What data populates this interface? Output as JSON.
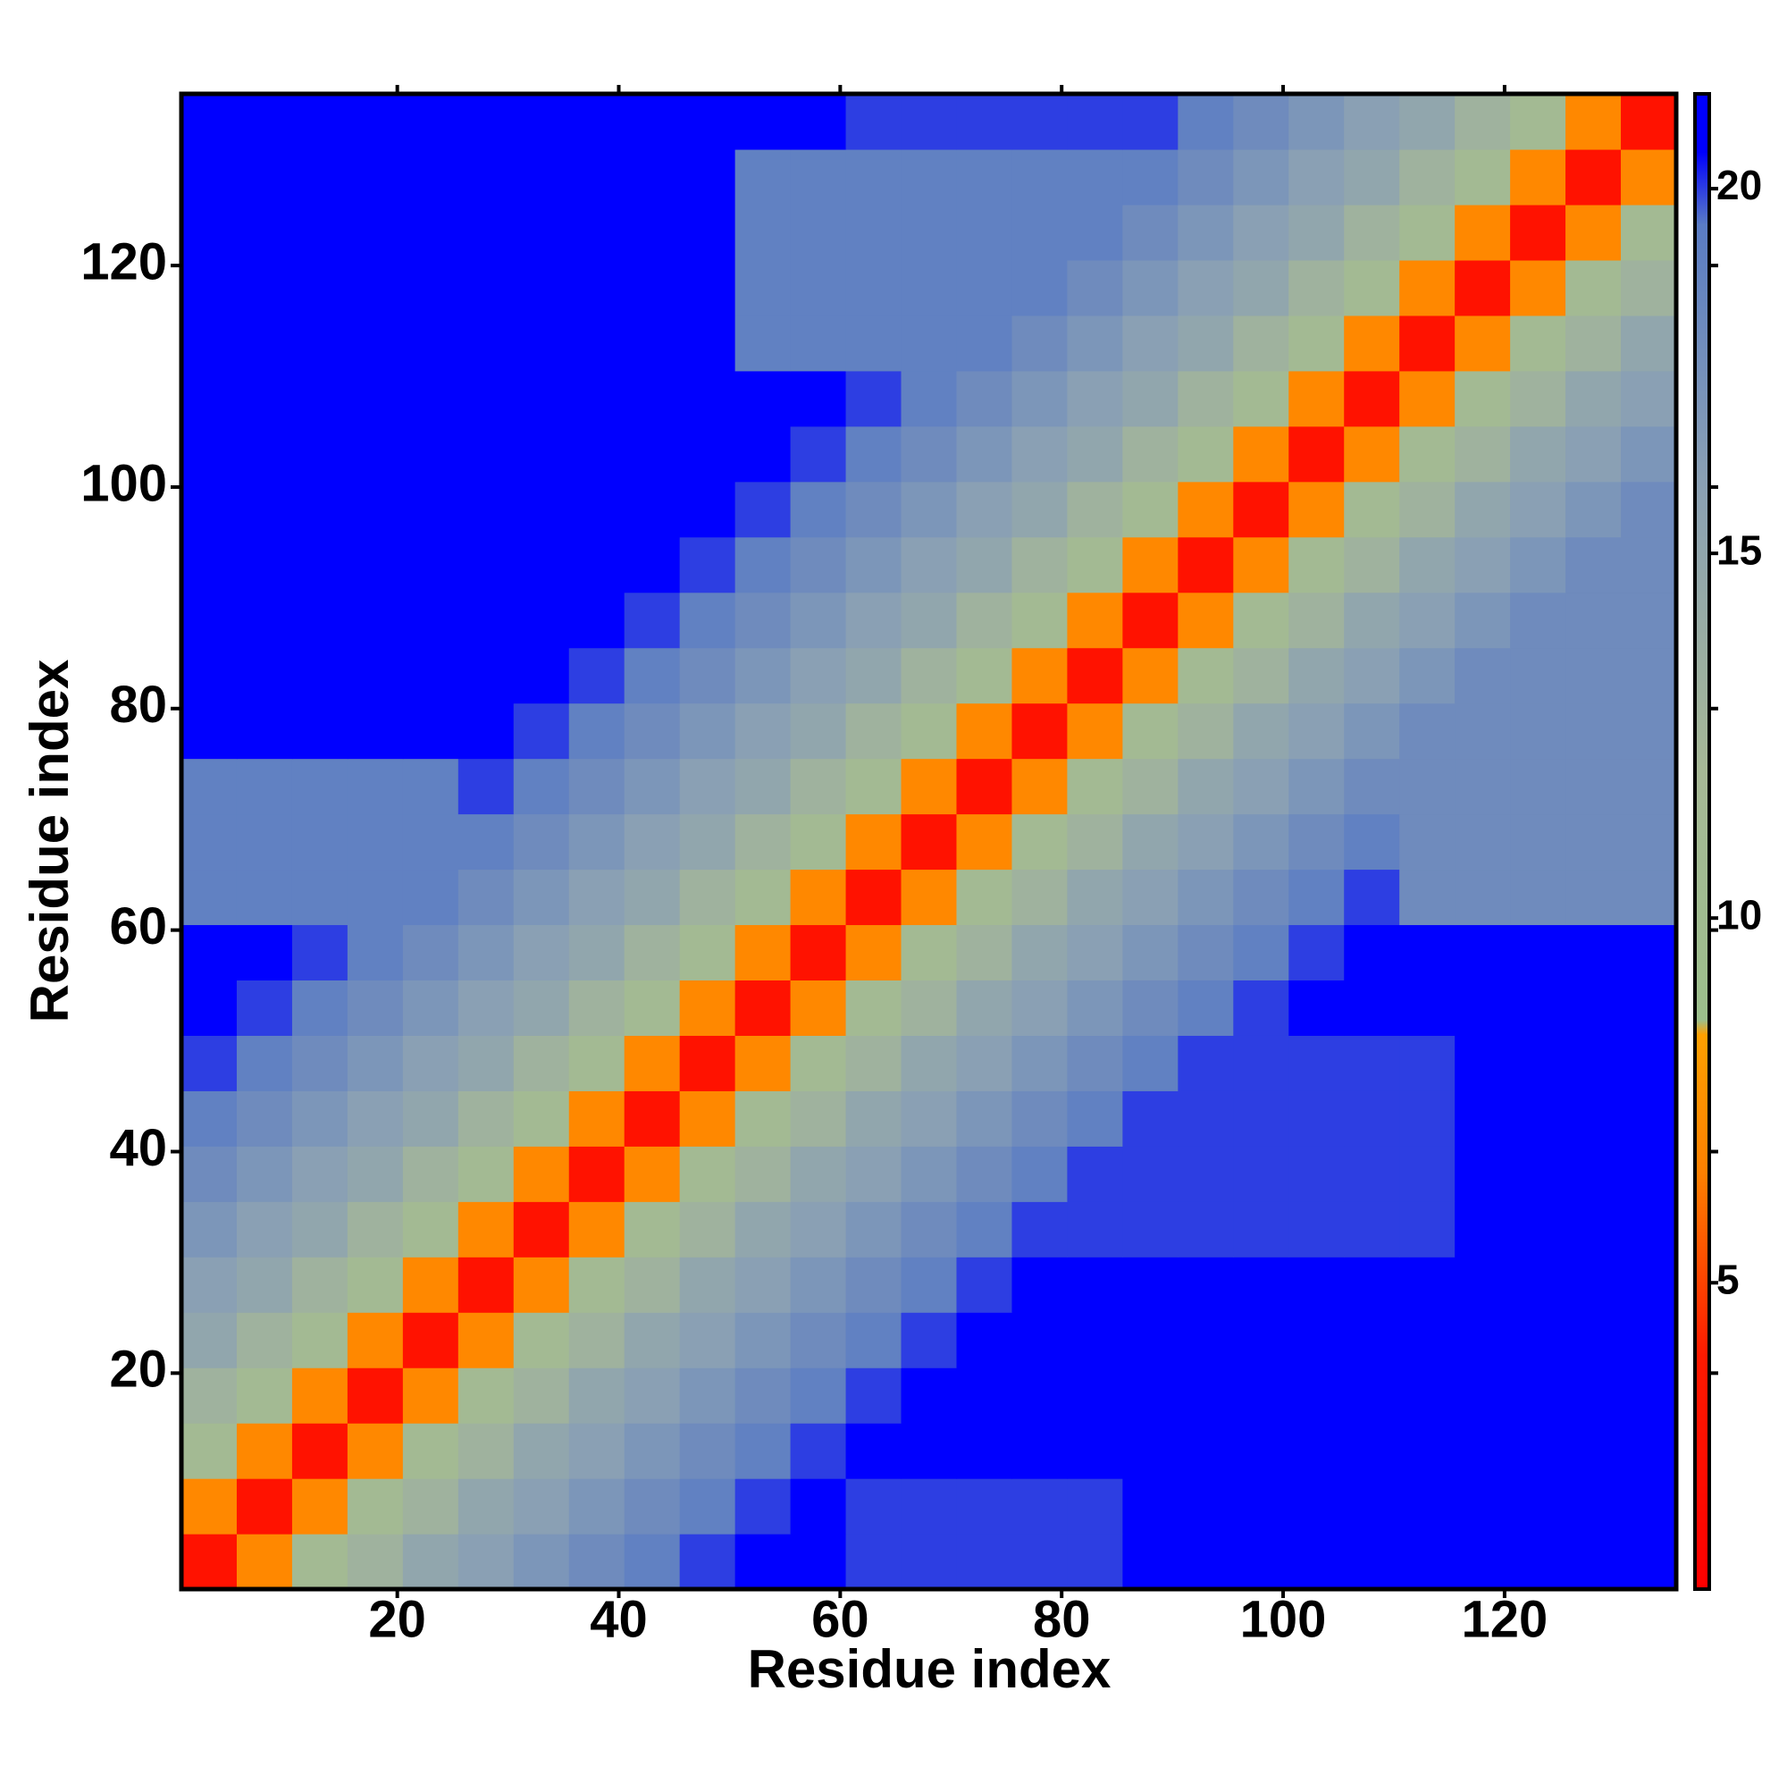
{
  "chart_data": {
    "type": "heatmap",
    "x_label": "Residue index",
    "y_label": "Residue index",
    "xlim": [
      0.5,
      135.5
    ],
    "ylim": [
      0.5,
      135.5
    ],
    "xticks": [
      20,
      40,
      60,
      80,
      100,
      120
    ],
    "yticks": [
      20,
      40,
      60,
      80,
      100,
      120
    ],
    "x_bins": [
      0.5,
      5.5,
      10.5,
      15.5,
      20.5,
      25.5,
      30.5,
      35.5,
      40.5,
      45.5,
      50.5,
      55.5,
      60.5,
      65.5,
      70.5,
      75.5,
      80.5,
      85.5,
      90.5,
      95.5,
      100.5,
      105.5,
      110.5,
      115.5,
      120.5,
      125.5,
      130.5,
      135.5
    ],
    "y_bins": [
      0.5,
      5.5,
      10.5,
      15.5,
      20.5,
      25.5,
      30.5,
      35.5,
      40.5,
      45.5,
      50.5,
      55.5,
      60.5,
      65.5,
      70.5,
      75.5,
      80.5,
      85.5,
      90.5,
      95.5,
      100.5,
      105.5,
      110.5,
      115.5,
      120.5,
      125.5,
      130.5,
      135.5
    ],
    "zlim": [
      0.8,
      21.3
    ],
    "zticks": [
      5,
      10,
      15,
      20
    ],
    "colorscale": [
      [
        0.8,
        "#ff0000"
      ],
      [
        4,
        "#ff1a00"
      ],
      [
        6.5,
        "#ff8000"
      ],
      [
        8.4,
        "#ffa000"
      ],
      [
        8.6,
        "#9cbf8c"
      ],
      [
        12,
        "#a6b896"
      ],
      [
        16,
        "#8aa0b4"
      ],
      [
        19.5,
        "#5a7cc4"
      ],
      [
        20.5,
        "#0000ff"
      ],
      [
        21.3,
        "#0000ff"
      ]
    ],
    "z": [
      [
        3,
        7,
        11,
        13,
        15,
        16,
        17,
        18,
        19,
        20,
        21,
        21,
        20,
        20,
        20,
        20,
        20,
        21,
        21,
        21,
        21,
        21,
        21,
        21,
        21,
        21,
        21
      ],
      [
        7,
        3,
        7,
        11,
        13,
        15,
        16,
        17,
        18,
        19,
        20,
        21,
        20,
        20,
        20,
        20,
        20,
        21,
        21,
        21,
        21,
        21,
        21,
        21,
        21,
        21,
        21
      ],
      [
        11,
        7,
        3,
        7,
        11,
        13,
        15,
        16,
        17,
        18,
        19,
        20,
        21,
        21,
        21,
        21,
        21,
        21,
        21,
        21,
        21,
        21,
        21,
        21,
        21,
        21,
        21
      ],
      [
        13,
        11,
        7,
        3,
        7,
        11,
        13,
        15,
        16,
        17,
        18,
        19,
        20,
        21,
        21,
        21,
        21,
        21,
        21,
        21,
        21,
        21,
        21,
        21,
        21,
        21,
        21
      ],
      [
        15,
        13,
        11,
        7,
        3,
        7,
        11,
        13,
        15,
        16,
        17,
        18,
        19,
        20,
        21,
        21,
        21,
        21,
        21,
        21,
        21,
        21,
        21,
        21,
        21,
        21,
        21
      ],
      [
        16,
        15,
        13,
        11,
        7,
        3,
        7,
        11,
        13,
        15,
        16,
        17,
        18,
        19,
        20,
        21,
        21,
        21,
        21,
        21,
        21,
        21,
        21,
        21,
        21,
        21,
        21
      ],
      [
        17,
        16,
        15,
        13,
        11,
        7,
        3,
        7,
        11,
        13,
        15,
        16,
        17,
        18,
        19,
        20,
        20,
        20,
        20,
        20,
        20,
        20,
        20,
        21,
        21,
        21,
        21
      ],
      [
        18,
        17,
        16,
        15,
        13,
        11,
        7,
        3,
        7,
        11,
        13,
        15,
        16,
        17,
        18,
        19,
        20,
        20,
        20,
        20,
        20,
        20,
        20,
        21,
        21,
        21,
        21
      ],
      [
        19,
        18,
        17,
        16,
        15,
        13,
        11,
        7,
        3,
        7,
        11,
        13,
        15,
        16,
        17,
        18,
        19,
        20,
        20,
        20,
        20,
        20,
        20,
        21,
        21,
        21,
        21
      ],
      [
        20,
        19,
        18,
        17,
        16,
        15,
        13,
        11,
        7,
        3,
        7,
        11,
        13,
        15,
        16,
        17,
        18,
        19,
        20,
        20,
        20,
        20,
        20,
        21,
        21,
        21,
        21
      ],
      [
        21,
        20,
        19,
        18,
        17,
        16,
        15,
        13,
        11,
        7,
        3,
        7,
        11,
        13,
        15,
        16,
        17,
        18,
        19,
        20,
        21,
        21,
        21,
        21,
        21,
        21,
        21
      ],
      [
        21,
        21,
        20,
        19,
        18,
        17,
        16,
        15,
        13,
        11,
        7,
        3,
        7,
        11,
        13,
        15,
        16,
        17,
        18,
        19,
        20,
        21,
        21,
        21,
        21,
        21,
        21
      ],
      [
        19,
        19,
        19,
        19,
        19,
        18,
        17,
        16,
        15,
        13,
        11,
        7,
        3,
        7,
        11,
        13,
        15,
        16,
        17,
        18,
        19,
        20,
        18,
        18,
        18,
        18,
        18
      ],
      [
        19,
        19,
        19,
        19,
        19,
        19,
        18,
        17,
        16,
        15,
        13,
        11,
        7,
        3,
        7,
        11,
        13,
        15,
        16,
        17,
        18,
        19,
        18,
        18,
        18,
        18,
        18
      ],
      [
        19,
        19,
        19,
        19,
        19,
        20,
        19,
        18,
        17,
        16,
        15,
        13,
        11,
        7,
        3,
        7,
        11,
        13,
        15,
        16,
        17,
        18,
        18,
        18,
        18,
        18,
        18
      ],
      [
        21,
        21,
        21,
        21,
        21,
        21,
        20,
        19,
        18,
        17,
        16,
        15,
        13,
        11,
        7,
        3,
        7,
        11,
        13,
        15,
        16,
        17,
        18,
        18,
        18,
        18,
        18
      ],
      [
        21,
        21,
        21,
        21,
        21,
        21,
        21,
        20,
        19,
        18,
        17,
        16,
        15,
        13,
        11,
        7,
        3,
        7,
        11,
        13,
        15,
        16,
        17,
        18,
        18,
        18,
        18
      ],
      [
        21,
        21,
        21,
        21,
        21,
        21,
        21,
        21,
        20,
        19,
        18,
        17,
        16,
        15,
        13,
        11,
        7,
        3,
        7,
        11,
        13,
        15,
        16,
        17,
        18,
        18,
        18
      ],
      [
        21,
        21,
        21,
        21,
        21,
        21,
        21,
        21,
        21,
        20,
        19,
        18,
        17,
        16,
        15,
        13,
        11,
        7,
        3,
        7,
        11,
        13,
        15,
        16,
        17,
        18,
        18
      ],
      [
        21,
        21,
        21,
        21,
        21,
        21,
        21,
        21,
        21,
        21,
        20,
        19,
        18,
        17,
        16,
        15,
        13,
        11,
        7,
        3,
        7,
        11,
        13,
        15,
        16,
        17,
        18
      ],
      [
        21,
        21,
        21,
        21,
        21,
        21,
        21,
        21,
        21,
        21,
        21,
        20,
        19,
        18,
        17,
        16,
        15,
        13,
        11,
        7,
        3,
        7,
        11,
        13,
        15,
        16,
        17
      ],
      [
        21,
        21,
        21,
        21,
        21,
        21,
        21,
        21,
        21,
        21,
        21,
        21,
        20,
        19,
        18,
        17,
        16,
        15,
        13,
        11,
        7,
        3,
        7,
        11,
        13,
        15,
        16
      ],
      [
        21,
        21,
        21,
        21,
        21,
        21,
        21,
        21,
        21,
        21,
        19,
        19,
        19,
        19,
        19,
        18,
        17,
        16,
        15,
        13,
        11,
        7,
        3,
        7,
        11,
        13,
        15
      ],
      [
        21,
        21,
        21,
        21,
        21,
        21,
        21,
        21,
        21,
        21,
        19,
        19,
        19,
        19,
        19,
        19,
        18,
        17,
        16,
        15,
        13,
        11,
        7,
        3,
        7,
        11,
        13
      ],
      [
        21,
        21,
        21,
        21,
        21,
        21,
        21,
        21,
        21,
        21,
        19,
        19,
        19,
        19,
        19,
        19,
        19,
        18,
        17,
        16,
        15,
        13,
        11,
        7,
        3,
        7,
        11
      ],
      [
        21,
        21,
        21,
        21,
        21,
        21,
        21,
        21,
        21,
        21,
        19,
        19,
        19,
        19,
        19,
        19,
        19,
        19,
        18,
        17,
        16,
        15,
        13,
        11,
        7,
        3,
        7
      ],
      [
        21,
        21,
        21,
        21,
        21,
        21,
        21,
        21,
        21,
        21,
        21,
        21,
        20,
        20,
        20,
        20,
        20,
        20,
        19,
        18,
        17,
        16,
        15,
        13,
        11,
        7,
        3
      ]
    ]
  }
}
